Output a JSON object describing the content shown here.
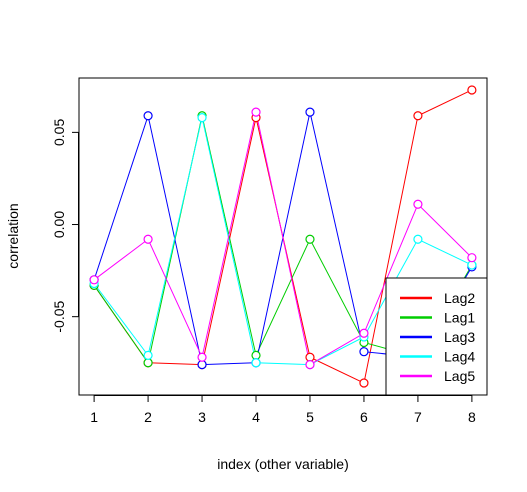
{
  "chart_data": {
    "type": "line",
    "title": "",
    "xlabel": "index (other variable)",
    "ylabel": "correlation",
    "x": [
      1,
      2,
      3,
      4,
      5,
      6,
      7,
      8
    ],
    "xticks": [
      "1",
      "2",
      "3",
      "4",
      "5",
      "6",
      "7",
      "8"
    ],
    "yticks": [
      {
        "value": 0.05,
        "label": "0.05"
      },
      {
        "value": 0.0,
        "label": "0.00"
      },
      {
        "value": -0.05,
        "label": "-0.05"
      }
    ],
    "xlim": [
      0.72,
      8.28
    ],
    "ylim": [
      -0.0925,
      0.0795
    ],
    "grid": false,
    "legend": "bottom-right",
    "series": [
      {
        "name": "Lag2",
        "color": "#FF0000",
        "values": [
          -0.033,
          -0.075,
          -0.076,
          0.058,
          -0.072,
          -0.086,
          0.059,
          0.073
        ]
      },
      {
        "name": "Lag1",
        "color": "#00CD00",
        "values": [
          -0.033,
          -0.075,
          0.059,
          -0.071,
          -0.008,
          -0.064,
          -0.072,
          -0.022
        ]
      },
      {
        "name": "Lag3",
        "color": "#0000FF",
        "values": [
          -0.03,
          0.059,
          -0.076,
          -0.075,
          0.061,
          -0.069,
          -0.072,
          -0.023
        ]
      },
      {
        "name": "Lag4",
        "color": "#00FFFF",
        "values": [
          -0.032,
          -0.071,
          0.058,
          -0.075,
          -0.076,
          -0.061,
          -0.008,
          -0.022
        ]
      },
      {
        "name": "Lag5",
        "color": "#FF00FF",
        "values": [
          -0.03,
          -0.008,
          -0.072,
          0.061,
          -0.076,
          -0.059,
          0.011,
          -0.018
        ]
      }
    ]
  }
}
